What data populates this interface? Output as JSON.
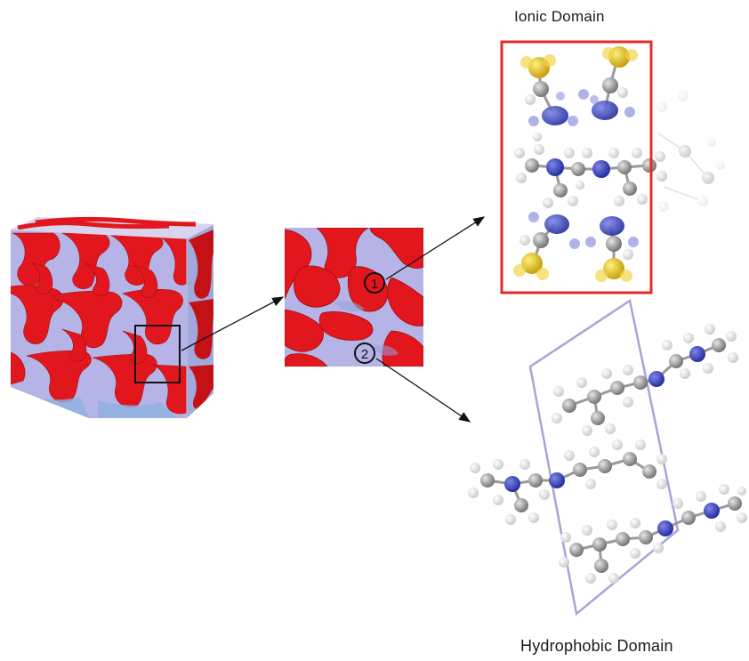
{
  "labels": {
    "ionic_domain": "Ionic Domain",
    "hydrophobic_domain": "Hydrophobic Domain"
  },
  "markers": {
    "site_1": "1",
    "site_2": "2"
  },
  "colors": {
    "ionic_phase": "#e2171d",
    "matrix_phase": "#b6b3e6",
    "matrix_shadow": "#8fb2df",
    "ionic_box": "#e8282a",
    "hydrophobic_box": "#a8a4d8",
    "carbon": "#8c8c8c",
    "nitrogen": "#2b36b8",
    "sulfur": "#d8b018",
    "hydrogen": "#e6e6e6"
  }
}
